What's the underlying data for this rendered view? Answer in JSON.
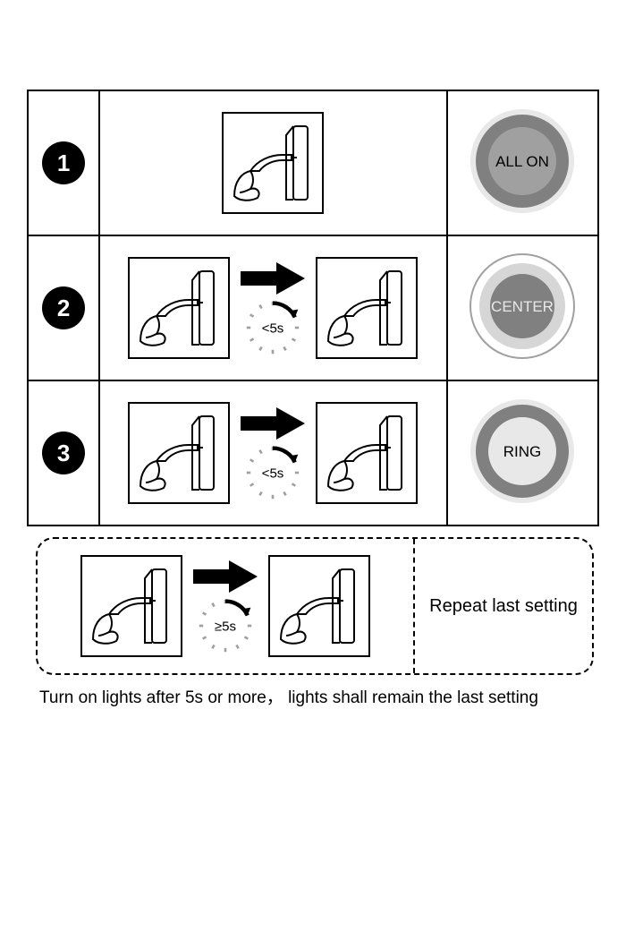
{
  "colors": {
    "black": "#000000",
    "white": "#ffffff",
    "grey_dark": "#808080",
    "grey_mid": "#a0a0a0",
    "grey_light": "#d6d6d6",
    "grey_vlight": "#e8e8e8"
  },
  "steps": [
    {
      "num": "1",
      "diagram": "single",
      "timer_text": null,
      "light": {
        "label": "ALL ON",
        "mode": "all_on"
      }
    },
    {
      "num": "2",
      "diagram": "double",
      "timer_text": "<5s",
      "light": {
        "label": "CENTER",
        "mode": "center"
      }
    },
    {
      "num": "3",
      "diagram": "double",
      "timer_text": "<5s",
      "light": {
        "label": "RING",
        "mode": "ring"
      }
    }
  ],
  "memory": {
    "timer_text": "≥5s",
    "right_label": "Repeat last setting",
    "caption": "Turn on lights after 5s or more，  lights shall remain the last setting"
  },
  "style": {
    "step_circle_diam": 48,
    "touch_box_size": 110,
    "light_diam": 120,
    "font": "Arial"
  }
}
